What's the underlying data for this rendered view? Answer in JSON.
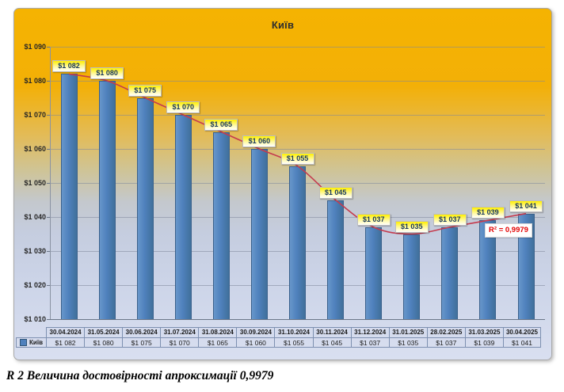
{
  "title": "Київ",
  "caption": "R 2 Величина достовірності апроксимації 0,9979",
  "chart_data": {
    "type": "bar",
    "title": "Київ",
    "series_name": "Київ",
    "categories": [
      "30.04.2024",
      "31.05.2024",
      "30.06.2024",
      "31.07.2024",
      "31.08.2024",
      "30.09.2024",
      "31.10.2024",
      "30.11.2024",
      "31.12.2024",
      "31.01.2025",
      "28.02.2025",
      "31.03.2025",
      "30.04.2025"
    ],
    "series": [
      {
        "name": "Київ",
        "values": [
          1082,
          1080,
          1075,
          1070,
          1065,
          1060,
          1055,
          1045,
          1037,
          1035,
          1037,
          1039,
          1041
        ]
      }
    ],
    "value_labels": [
      "$1 082",
      "$1 080",
      "$1 075",
      "$1 070",
      "$1 065",
      "$1 060",
      "$1 055",
      "$1 045",
      "$1 037",
      "$1 035",
      "$1 037",
      "$1 039",
      "$1 041"
    ],
    "ylim": [
      1010,
      1090
    ],
    "ytick_step": 10,
    "ytick_labels": [
      "$1 090",
      "$1 080",
      "$1 070",
      "$1 060",
      "$1 050",
      "$1 040",
      "$1 030",
      "$1 020",
      "$1 010"
    ],
    "grid": true,
    "legend_position": "data-table-left",
    "data_table": true,
    "trendline": {
      "type": "polynomial",
      "label": "R² = 0,9979",
      "r2": "0,9979",
      "color": "#c53b4e"
    },
    "colors": {
      "bar": "#4f81bd",
      "bar_border": "#3a618c",
      "trend": "#c53b4e",
      "label_bg": "#fff100",
      "bg_top": "#f5b301",
      "bg_bottom": "#d9dff0",
      "accent_red": "#e40000"
    }
  }
}
